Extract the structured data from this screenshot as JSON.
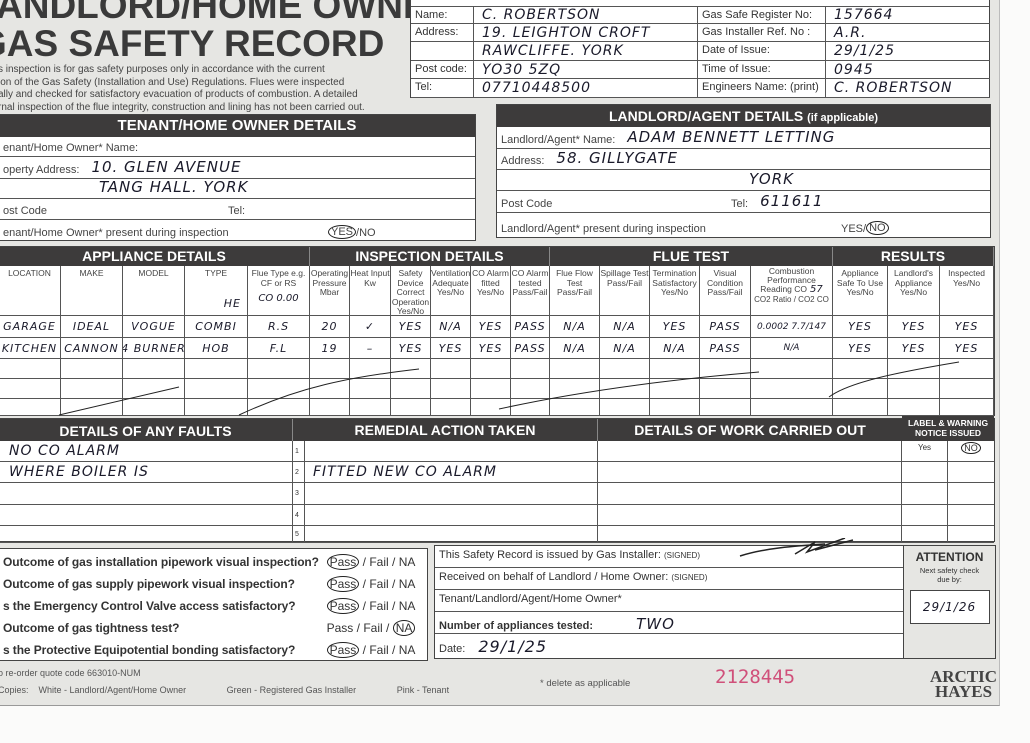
{
  "title": {
    "line1": "ANDLORD/HOME OWNER",
    "line2": "GAS SAFETY RECORD"
  },
  "intro": [
    "s inspection is for gas safety purposes only in accordance with the current",
    "ion of the Gas Safety (Installation and Use) Regulations. Flues were inspected",
    "ally and checked for satisfactory evacuation of products of combustion. A detailed",
    "rnal inspection of the flue integrity, construction and lining has not been carried out."
  ],
  "installer": {
    "left": [
      {
        "label": "Name:",
        "value": "C. ROBERTSON"
      },
      {
        "label": "Address:",
        "value": "19. LEIGHTON CROFT"
      },
      {
        "label": "",
        "value": "RAWCLIFFE. YORK"
      },
      {
        "label": "Post code:",
        "value": "YO30 5ZQ"
      },
      {
        "label": "Tel:",
        "value": "07710448500"
      }
    ],
    "right": [
      {
        "label": "Gas Safe Register No:",
        "value": "157664"
      },
      {
        "label": "Gas Installer Ref. No :",
        "value": "A.R."
      },
      {
        "label": "Date of Issue:",
        "value": "29/1/25"
      },
      {
        "label": "Time of Issue:",
        "value": "0945"
      },
      {
        "label": "Engineers Name: (print)",
        "value": "C. ROBERTSON"
      }
    ]
  },
  "tenant": {
    "header": "TENANT/HOME OWNER DETAILS",
    "name_label": "enant/Home Owner* Name:",
    "address_label": "operty Address:",
    "address1": "10. GLEN AVENUE",
    "address2": "TANG HALL. YORK",
    "postcode_label": "ost Code",
    "tel_label": "Tel:",
    "present_label": "enant/Home Owner* present during inspection",
    "yes": "YES",
    "sep": "/",
    "no": "NO"
  },
  "landlord": {
    "header": "LANDLORD/AGENT DETAILS",
    "header_note": "(if applicable)",
    "name_label": "Landlord/Agent* Name:",
    "name": "ADAM BENNETT LETTING",
    "address_label": "Address:",
    "address1": "58. GILLYGATE",
    "address2": "YORK",
    "postcode_label": "Post Code",
    "tel_label": "Tel:",
    "tel": "611611",
    "present_label": "Landlord/Agent* present during inspection",
    "yes": "YES",
    "sep": "/",
    "no": "NO"
  },
  "appliance": {
    "groups": [
      "APPLIANCE DETAILS",
      "INSPECTION DETAILS",
      "FLUE TEST",
      "RESULTS"
    ],
    "columns": [
      "LOCATION",
      "MAKE",
      "MODEL",
      "TYPE",
      "Flue Type e.g. CF or RS",
      "Operating Pressure Mbar",
      "Heat Input Kw",
      "Safety Device Correct Operation Yes/No",
      "Ventilation Adequate Yes/No",
      "CO Alarm fitted Yes/No",
      "CO Alarm tested Pass/Fail",
      "Flue Flow Test Pass/Fail",
      "Spillage Test Pass/Fail",
      "Termination Satisfactory Yes/No",
      "Visual Condition Pass/Fail",
      "Combustion Performance Reading CO",
      "Appliance Safe To Use Yes/No",
      "Landlord's Appliance Yes/No",
      "Inspected Yes/No"
    ],
    "combustion_sub": "CO2 Ratio / CO2 CO",
    "notes": {
      "type": "HE",
      "flue": "CO 0.00",
      "co": "57"
    },
    "rows": [
      [
        "GARAGE",
        "IDEAL",
        "VOGUE",
        "COMBI",
        "R.S",
        "20",
        "✓",
        "YES",
        "N/A",
        "YES",
        "PASS",
        "N/A",
        "N/A",
        "YES",
        "PASS",
        "0.0002 7.7/147",
        "YES",
        "YES",
        "YES"
      ],
      [
        "KITCHEN",
        "CANNON",
        "4 BURNER",
        "HOB",
        "F.L",
        "19",
        "–",
        "YES",
        "YES",
        "YES",
        "PASS",
        "N/A",
        "N/A",
        "N/A",
        "PASS",
        "N/A",
        "YES",
        "YES",
        "YES"
      ],
      [
        "",
        "",
        "",
        "",
        "",
        "",
        "",
        "",
        "",
        "",
        "",
        "",
        "",
        "",
        "",
        "",
        "",
        "",
        ""
      ],
      [
        "",
        "",
        "",
        "",
        "",
        "",
        "",
        "",
        "",
        "",
        "",
        "",
        "",
        "",
        "",
        "",
        "",
        "",
        ""
      ],
      [
        "",
        "",
        "",
        "",
        "",
        "",
        "",
        "",
        "",
        "",
        "",
        "",
        "",
        "",
        "",
        "",
        "",
        "",
        ""
      ]
    ]
  },
  "faults": {
    "header": "DETAILS OF ANY FAULTS",
    "lines": [
      "NO CO ALARM",
      "WHERE BOILER IS",
      "",
      "",
      ""
    ]
  },
  "remedial": {
    "header": "REMEDIAL ACTION TAKEN",
    "numbers": [
      "1",
      "2",
      "3",
      "4",
      "5"
    ],
    "lines": [
      "",
      "FITTED NEW CO ALARM",
      "",
      "",
      ""
    ]
  },
  "work": {
    "header": "DETAILS OF WORK CARRIED OUT"
  },
  "label_notice": {
    "header": "LABEL & WARNING NOTICE ISSUED",
    "yes": "Yes",
    "no": "NO"
  },
  "questions": [
    {
      "q": "Outcome of gas installation pipework visual inspection?",
      "pass": "Pass",
      "fail": "Fail",
      "na": "NA",
      "selected": "Pass"
    },
    {
      "q": "Outcome of gas supply pipework visual inspection?",
      "pass": "Pass",
      "fail": "Fail",
      "na": "NA",
      "selected": "Pass"
    },
    {
      "q": "s the Emergency Control Valve access satisfactory?",
      "pass": "Pass",
      "fail": "Fail",
      "na": "NA",
      "selected": "Pass"
    },
    {
      "q": "Outcome of gas tightness test?",
      "pass": "Pass",
      "fail": "Fail",
      "na": "NA",
      "selected": "NA"
    },
    {
      "q": "s the Protective Equipotential bonding satisfactory?",
      "pass": "Pass",
      "fail": "Fail",
      "na": "NA",
      "selected": "Pass"
    }
  ],
  "signoff": {
    "issued_label": "This Safety Record is issued by Gas Installer:",
    "signed": "(SIGNED)",
    "received_label": "Received on behalf of Landlord / Home Owner:",
    "who_label": "Tenant/Landlord/Agent/Home Owner*",
    "count_label": "Number of appliances tested:",
    "count": "TWO",
    "date_label": "Date:",
    "date": "29/1/25"
  },
  "attention": {
    "title": "ATTENTION",
    "note": "Next safety check due by:",
    "due": "29/1/26"
  },
  "footer": {
    "reorder": "o re-order quote code 663010-NUM",
    "copies": "Copies:",
    "white": "White - Landlord/Agent/Home Owner",
    "green": "Green - Registered Gas Installer",
    "pink": "Pink - Tenant",
    "delete_note": "* delete as applicable",
    "serial": "2128445",
    "serial_color": "#d0507a",
    "logo1": "ARCTIC",
    "logo2": "HAYES"
  }
}
